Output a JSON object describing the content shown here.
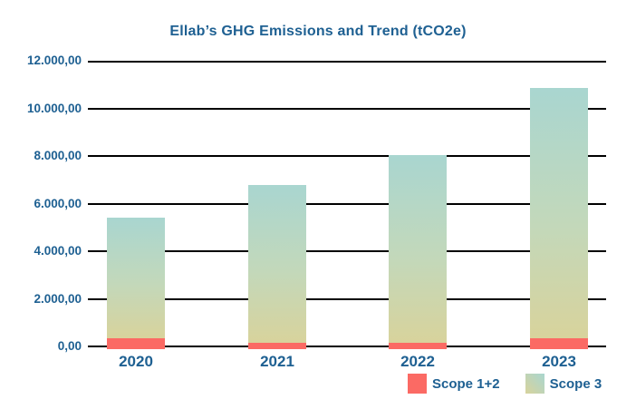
{
  "title": "Ellab’s GHG Emissions and Trend (tCO2e)",
  "colors": {
    "accent_blue": "#1e6092",
    "scope12_red": "#fb6a64",
    "scope3_gradient_top": "#a9d6d0",
    "scope3_gradient_bottom": "#d8d39c",
    "gridline": "#000000",
    "background": "#ffffff"
  },
  "legend": {
    "items": [
      {
        "label": "Scope 1+2",
        "swatch": "scope12-red-swatch"
      },
      {
        "label": "Scope 3",
        "swatch": "scope3-gradient-swatch"
      }
    ]
  },
  "chart_data": {
    "type": "bar",
    "stacked": true,
    "title": "Ellab’s GHG Emissions and Trend (tCO2e)",
    "xlabel": "",
    "ylabel": "",
    "categories": [
      "2020",
      "2021",
      "2022",
      "2023"
    ],
    "series": [
      {
        "name": "Scope 1+2",
        "values": [
          350,
          170,
          140,
          330
        ]
      },
      {
        "name": "Scope 3",
        "values": [
          5050,
          6630,
          7910,
          10520
        ]
      }
    ],
    "totals": [
      5400,
      6800,
      8050,
      10850
    ],
    "ylim": [
      0,
      12000
    ],
    "y_tick_interval": 2000,
    "y_ticks": [
      {
        "value": 12000,
        "label": "12.000,00"
      },
      {
        "value": 10000,
        "label": "10.000,00"
      },
      {
        "value": 8000,
        "label": "8.000,00"
      },
      {
        "value": 6000,
        "label": "6.000,00"
      },
      {
        "value": 4000,
        "label": "4.000,00"
      },
      {
        "value": 2000,
        "label": "2.000,00"
      },
      {
        "value": 0,
        "label": "0,00"
      }
    ],
    "grid": "horizontal",
    "legend_position": "bottom-right",
    "number_format": "european"
  }
}
